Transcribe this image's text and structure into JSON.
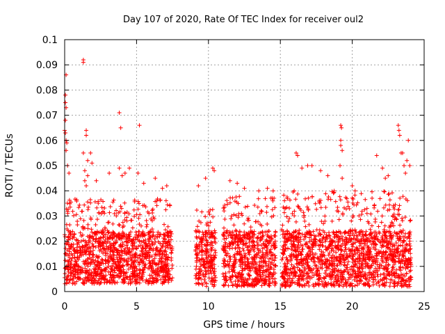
{
  "chart_data": {
    "type": "scatter",
    "title": "Day 107 of 2020, Rate Of TEC Index for receiver oul2",
    "xlabel": "GPS time / hours",
    "ylabel": "ROTI / TECUs",
    "xlim": [
      0,
      25
    ],
    "ylim": [
      0,
      0.1
    ],
    "xticks": [
      "0",
      "5",
      "10",
      "15",
      "20",
      "25"
    ],
    "yticks": [
      "0",
      "0.01",
      "0.02",
      "0.03",
      "0.04",
      "0.05",
      "0.06",
      "0.07",
      "0.08",
      "0.09",
      "0.1"
    ],
    "grid": true,
    "marker": "plus",
    "color": "#ff0000",
    "segments": [
      {
        "x_start": 0.0,
        "x_end": 7.5,
        "y_min": 0.003,
        "y_max": 0.037
      },
      {
        "x_start": 9.1,
        "x_end": 10.5,
        "y_min": 0.002,
        "y_max": 0.033
      },
      {
        "x_start": 11.0,
        "x_end": 14.7,
        "y_min": 0.002,
        "y_max": 0.038
      },
      {
        "x_start": 15.1,
        "x_end": 24.1,
        "y_min": 0.002,
        "y_max": 0.04
      }
    ],
    "notable_points": [
      {
        "x": 1.3,
        "y": 0.092
      },
      {
        "x": 1.3,
        "y": 0.091
      },
      {
        "x": 0.1,
        "y": 0.086
      },
      {
        "x": 0.05,
        "y": 0.078
      },
      {
        "x": 0.05,
        "y": 0.075
      },
      {
        "x": 0.1,
        "y": 0.073
      },
      {
        "x": 0.05,
        "y": 0.068
      },
      {
        "x": 0.0,
        "y": 0.064
      },
      {
        "x": 0.05,
        "y": 0.063
      },
      {
        "x": 0.1,
        "y": 0.06
      },
      {
        "x": 0.15,
        "y": 0.059
      },
      {
        "x": 0.1,
        "y": 0.056
      },
      {
        "x": 0.2,
        "y": 0.05
      },
      {
        "x": 0.3,
        "y": 0.047
      },
      {
        "x": 3.8,
        "y": 0.071
      },
      {
        "x": 3.9,
        "y": 0.065
      },
      {
        "x": 5.2,
        "y": 0.066
      },
      {
        "x": 1.5,
        "y": 0.064
      },
      {
        "x": 1.5,
        "y": 0.062
      },
      {
        "x": 1.3,
        "y": 0.055
      },
      {
        "x": 1.8,
        "y": 0.055
      },
      {
        "x": 1.6,
        "y": 0.052
      },
      {
        "x": 1.9,
        "y": 0.051
      },
      {
        "x": 1.4,
        "y": 0.048
      },
      {
        "x": 1.6,
        "y": 0.046
      },
      {
        "x": 1.4,
        "y": 0.044
      },
      {
        "x": 1.5,
        "y": 0.042
      },
      {
        "x": 2.2,
        "y": 0.044
      },
      {
        "x": 3.1,
        "y": 0.047
      },
      {
        "x": 3.8,
        "y": 0.049
      },
      {
        "x": 4.0,
        "y": 0.046
      },
      {
        "x": 4.2,
        "y": 0.047
      },
      {
        "x": 4.5,
        "y": 0.049
      },
      {
        "x": 5.1,
        "y": 0.047
      },
      {
        "x": 5.5,
        "y": 0.043
      },
      {
        "x": 6.3,
        "y": 0.045
      },
      {
        "x": 6.8,
        "y": 0.041
      },
      {
        "x": 7.1,
        "y": 0.042
      },
      {
        "x": 9.3,
        "y": 0.042
      },
      {
        "x": 9.8,
        "y": 0.045
      },
      {
        "x": 10.3,
        "y": 0.049
      },
      {
        "x": 10.4,
        "y": 0.048
      },
      {
        "x": 11.5,
        "y": 0.044
      },
      {
        "x": 12.0,
        "y": 0.043
      },
      {
        "x": 12.5,
        "y": 0.041
      },
      {
        "x": 13.5,
        "y": 0.04
      },
      {
        "x": 14.1,
        "y": 0.041
      },
      {
        "x": 14.5,
        "y": 0.04
      },
      {
        "x": 16.1,
        "y": 0.055
      },
      {
        "x": 16.2,
        "y": 0.054
      },
      {
        "x": 16.5,
        "y": 0.049
      },
      {
        "x": 16.9,
        "y": 0.05
      },
      {
        "x": 17.2,
        "y": 0.05
      },
      {
        "x": 17.8,
        "y": 0.048
      },
      {
        "x": 18.3,
        "y": 0.046
      },
      {
        "x": 19.2,
        "y": 0.066
      },
      {
        "x": 19.25,
        "y": 0.065
      },
      {
        "x": 19.2,
        "y": 0.06
      },
      {
        "x": 19.2,
        "y": 0.058
      },
      {
        "x": 19.3,
        "y": 0.056
      },
      {
        "x": 19.15,
        "y": 0.05
      },
      {
        "x": 19.3,
        "y": 0.045
      },
      {
        "x": 20.0,
        "y": 0.042
      },
      {
        "x": 20.2,
        "y": 0.04
      },
      {
        "x": 21.7,
        "y": 0.054
      },
      {
        "x": 22.1,
        "y": 0.049
      },
      {
        "x": 22.3,
        "y": 0.045
      },
      {
        "x": 22.5,
        "y": 0.046
      },
      {
        "x": 23.2,
        "y": 0.066
      },
      {
        "x": 23.25,
        "y": 0.064
      },
      {
        "x": 23.3,
        "y": 0.062
      },
      {
        "x": 23.4,
        "y": 0.055
      },
      {
        "x": 23.5,
        "y": 0.055
      },
      {
        "x": 23.6,
        "y": 0.05
      },
      {
        "x": 23.7,
        "y": 0.047
      },
      {
        "x": 23.9,
        "y": 0.06
      },
      {
        "x": 23.8,
        "y": 0.052
      },
      {
        "x": 24.0,
        "y": 0.05
      }
    ]
  }
}
